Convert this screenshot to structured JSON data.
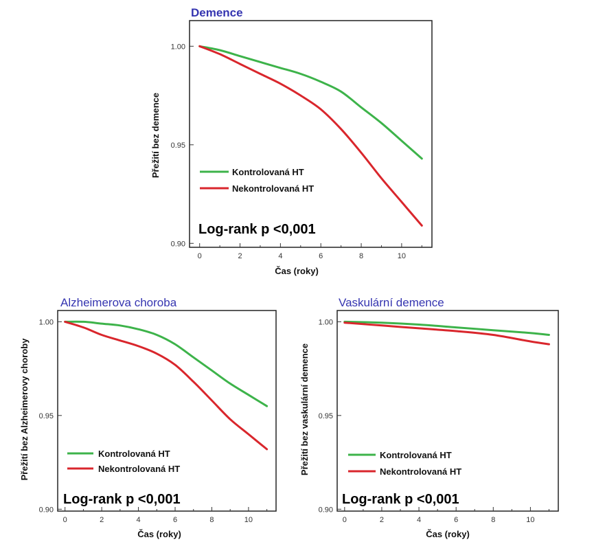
{
  "chart_data": [
    {
      "type": "line",
      "title": "Demence",
      "ylabel": "Přežití bez demence",
      "xlabel": "Čas (roky)",
      "xlim": [
        -0.5,
        11.5
      ],
      "ylim": [
        0.898,
        1.013
      ],
      "xticks": [
        0,
        2,
        4,
        6,
        8,
        10
      ],
      "yticks": [
        0.9,
        0.95,
        1.0
      ],
      "ytick_labels": [
        "0.90",
        "0.95",
        "1.00"
      ],
      "legend_placement": "lower-left",
      "annotation": "Log-rank p <0,001",
      "series": [
        {
          "name": "Kontrolovaná HT",
          "color": "#3db34a",
          "x": [
            0,
            1,
            2,
            3,
            4,
            5,
            6,
            7,
            8,
            9,
            10,
            11
          ],
          "y": [
            1.0,
            0.998,
            0.995,
            0.992,
            0.989,
            0.986,
            0.982,
            0.977,
            0.969,
            0.961,
            0.952,
            0.943
          ]
        },
        {
          "name": "Nekontrolovaná HT",
          "color": "#d9262c",
          "x": [
            0,
            1,
            2,
            3,
            4,
            5,
            6,
            7,
            8,
            9,
            10,
            11
          ],
          "y": [
            1.0,
            0.996,
            0.991,
            0.986,
            0.981,
            0.975,
            0.968,
            0.958,
            0.946,
            0.933,
            0.921,
            0.909
          ]
        }
      ]
    },
    {
      "type": "line",
      "title": "Alzheimerova choroba",
      "ylabel": "Přežití bez Alzheimerovy choroby",
      "xlabel": "Čas (roky)",
      "xlim": [
        -0.4,
        11.5
      ],
      "ylim": [
        0.899,
        1.006
      ],
      "xticks": [
        0,
        2,
        4,
        6,
        8,
        10
      ],
      "yticks": [
        0.9,
        0.95,
        1.0
      ],
      "ytick_labels": [
        "0.90",
        "0.95",
        "1.00"
      ],
      "legend_placement": "lower-left",
      "annotation": "Log-rank p <0,001",
      "series": [
        {
          "name": "Kontrolovaná HT",
          "color": "#3db34a",
          "x": [
            0,
            1,
            2,
            3,
            4,
            5,
            6,
            7,
            8,
            9,
            10,
            11
          ],
          "y": [
            1.0,
            1.0,
            0.999,
            0.998,
            0.996,
            0.993,
            0.988,
            0.981,
            0.974,
            0.967,
            0.961,
            0.955
          ]
        },
        {
          "name": "Nekontrolovaná HT",
          "color": "#d9262c",
          "x": [
            0,
            1,
            2,
            3,
            4,
            5,
            6,
            7,
            8,
            9,
            10,
            11
          ],
          "y": [
            1.0,
            0.997,
            0.993,
            0.99,
            0.987,
            0.983,
            0.977,
            0.968,
            0.958,
            0.948,
            0.94,
            0.932
          ]
        }
      ]
    },
    {
      "type": "line",
      "title": "Vaskulární demence",
      "ylabel": "Přežití bez vaskulární demence",
      "xlabel": "Čas (roky)",
      "xlim": [
        -0.4,
        11.5
      ],
      "ylim": [
        0.899,
        1.006
      ],
      "xticks": [
        0,
        2,
        4,
        6,
        8,
        10
      ],
      "yticks": [
        0.9,
        0.95,
        1.0
      ],
      "ytick_labels": [
        "0.90",
        "0.95",
        "1.00"
      ],
      "legend_placement": "lower-left",
      "annotation": "Log-rank p <0,001",
      "series": [
        {
          "name": "Kontrolovaná HT",
          "color": "#3db34a",
          "x": [
            0,
            2,
            4,
            6,
            8,
            10,
            11
          ],
          "y": [
            1.0,
            0.9995,
            0.9985,
            0.997,
            0.9955,
            0.994,
            0.993
          ]
        },
        {
          "name": "Nekontrolovaná HT",
          "color": "#d9262c",
          "x": [
            0,
            2,
            4,
            6,
            8,
            10,
            11
          ],
          "y": [
            0.9995,
            0.998,
            0.9965,
            0.995,
            0.993,
            0.9895,
            0.988
          ]
        }
      ]
    }
  ]
}
